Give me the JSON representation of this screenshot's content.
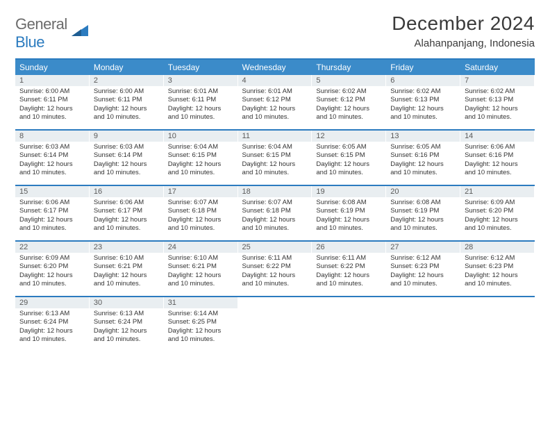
{
  "logo": {
    "word1": "General",
    "word2": "Blue"
  },
  "title": "December 2024",
  "location": "Alahanpanjang, Indonesia",
  "colors": {
    "header_bg": "#3b8bc9",
    "header_text": "#ffffff",
    "rule": "#2b7bbf",
    "daynum_bg": "#e9eef1",
    "daynum_text": "#5a5a5a",
    "body_text": "#333333",
    "page_bg": "#ffffff"
  },
  "typography": {
    "month_title_pt": 28,
    "location_pt": 15,
    "weekday_pt": 12,
    "daynum_pt": 11,
    "cell_pt": 9.5
  },
  "weekdays": [
    "Sunday",
    "Monday",
    "Tuesday",
    "Wednesday",
    "Thursday",
    "Friday",
    "Saturday"
  ],
  "layout": {
    "columns": 7,
    "rows": 5,
    "first_weekday_index": 0
  },
  "days": [
    {
      "n": 1,
      "sunrise": "6:00 AM",
      "sunset": "6:11 PM",
      "daylight": "12 hours and 10 minutes."
    },
    {
      "n": 2,
      "sunrise": "6:00 AM",
      "sunset": "6:11 PM",
      "daylight": "12 hours and 10 minutes."
    },
    {
      "n": 3,
      "sunrise": "6:01 AM",
      "sunset": "6:11 PM",
      "daylight": "12 hours and 10 minutes."
    },
    {
      "n": 4,
      "sunrise": "6:01 AM",
      "sunset": "6:12 PM",
      "daylight": "12 hours and 10 minutes."
    },
    {
      "n": 5,
      "sunrise": "6:02 AM",
      "sunset": "6:12 PM",
      "daylight": "12 hours and 10 minutes."
    },
    {
      "n": 6,
      "sunrise": "6:02 AM",
      "sunset": "6:13 PM",
      "daylight": "12 hours and 10 minutes."
    },
    {
      "n": 7,
      "sunrise": "6:02 AM",
      "sunset": "6:13 PM",
      "daylight": "12 hours and 10 minutes."
    },
    {
      "n": 8,
      "sunrise": "6:03 AM",
      "sunset": "6:14 PM",
      "daylight": "12 hours and 10 minutes."
    },
    {
      "n": 9,
      "sunrise": "6:03 AM",
      "sunset": "6:14 PM",
      "daylight": "12 hours and 10 minutes."
    },
    {
      "n": 10,
      "sunrise": "6:04 AM",
      "sunset": "6:15 PM",
      "daylight": "12 hours and 10 minutes."
    },
    {
      "n": 11,
      "sunrise": "6:04 AM",
      "sunset": "6:15 PM",
      "daylight": "12 hours and 10 minutes."
    },
    {
      "n": 12,
      "sunrise": "6:05 AM",
      "sunset": "6:15 PM",
      "daylight": "12 hours and 10 minutes."
    },
    {
      "n": 13,
      "sunrise": "6:05 AM",
      "sunset": "6:16 PM",
      "daylight": "12 hours and 10 minutes."
    },
    {
      "n": 14,
      "sunrise": "6:06 AM",
      "sunset": "6:16 PM",
      "daylight": "12 hours and 10 minutes."
    },
    {
      "n": 15,
      "sunrise": "6:06 AM",
      "sunset": "6:17 PM",
      "daylight": "12 hours and 10 minutes."
    },
    {
      "n": 16,
      "sunrise": "6:06 AM",
      "sunset": "6:17 PM",
      "daylight": "12 hours and 10 minutes."
    },
    {
      "n": 17,
      "sunrise": "6:07 AM",
      "sunset": "6:18 PM",
      "daylight": "12 hours and 10 minutes."
    },
    {
      "n": 18,
      "sunrise": "6:07 AM",
      "sunset": "6:18 PM",
      "daylight": "12 hours and 10 minutes."
    },
    {
      "n": 19,
      "sunrise": "6:08 AM",
      "sunset": "6:19 PM",
      "daylight": "12 hours and 10 minutes."
    },
    {
      "n": 20,
      "sunrise": "6:08 AM",
      "sunset": "6:19 PM",
      "daylight": "12 hours and 10 minutes."
    },
    {
      "n": 21,
      "sunrise": "6:09 AM",
      "sunset": "6:20 PM",
      "daylight": "12 hours and 10 minutes."
    },
    {
      "n": 22,
      "sunrise": "6:09 AM",
      "sunset": "6:20 PM",
      "daylight": "12 hours and 10 minutes."
    },
    {
      "n": 23,
      "sunrise": "6:10 AM",
      "sunset": "6:21 PM",
      "daylight": "12 hours and 10 minutes."
    },
    {
      "n": 24,
      "sunrise": "6:10 AM",
      "sunset": "6:21 PM",
      "daylight": "12 hours and 10 minutes."
    },
    {
      "n": 25,
      "sunrise": "6:11 AM",
      "sunset": "6:22 PM",
      "daylight": "12 hours and 10 minutes."
    },
    {
      "n": 26,
      "sunrise": "6:11 AM",
      "sunset": "6:22 PM",
      "daylight": "12 hours and 10 minutes."
    },
    {
      "n": 27,
      "sunrise": "6:12 AM",
      "sunset": "6:23 PM",
      "daylight": "12 hours and 10 minutes."
    },
    {
      "n": 28,
      "sunrise": "6:12 AM",
      "sunset": "6:23 PM",
      "daylight": "12 hours and 10 minutes."
    },
    {
      "n": 29,
      "sunrise": "6:13 AM",
      "sunset": "6:24 PM",
      "daylight": "12 hours and 10 minutes."
    },
    {
      "n": 30,
      "sunrise": "6:13 AM",
      "sunset": "6:24 PM",
      "daylight": "12 hours and 10 minutes."
    },
    {
      "n": 31,
      "sunrise": "6:14 AM",
      "sunset": "6:25 PM",
      "daylight": "12 hours and 10 minutes."
    }
  ],
  "labels": {
    "sunrise": "Sunrise:",
    "sunset": "Sunset:",
    "daylight": "Daylight:"
  }
}
